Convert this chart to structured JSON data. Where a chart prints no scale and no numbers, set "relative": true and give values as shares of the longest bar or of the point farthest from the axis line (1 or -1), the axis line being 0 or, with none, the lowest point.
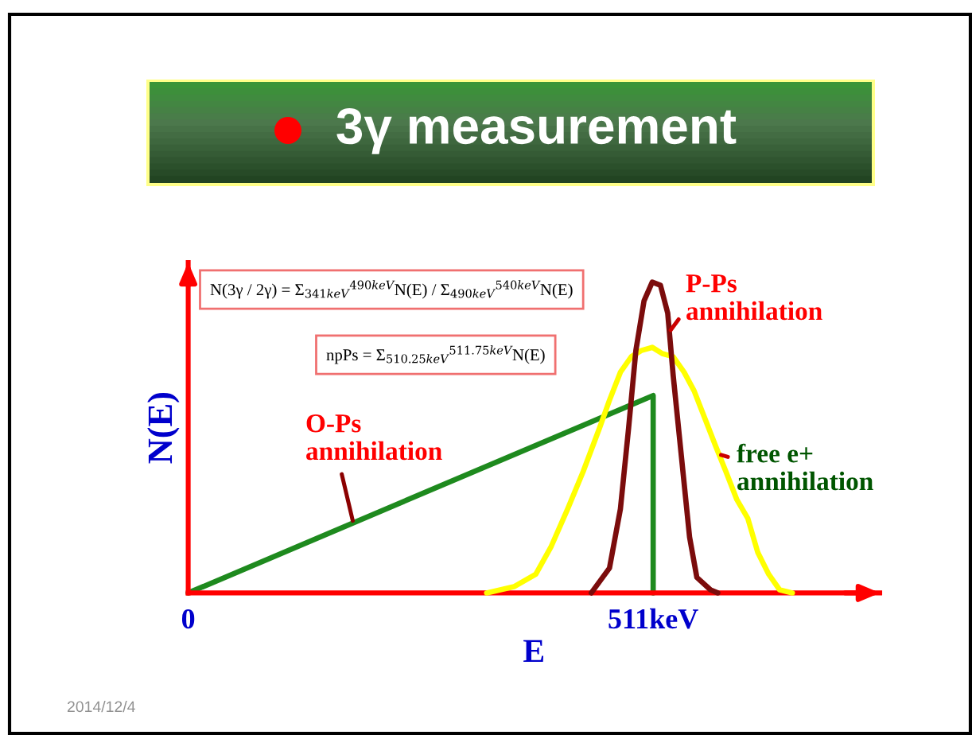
{
  "chart_data": {
    "type": "line",
    "title": "3γ measurement",
    "xlabel": "E",
    "ylabel": "N(E)",
    "relative": true,
    "line_style": "solid",
    "xlim": [
      0,
      760
    ],
    "xticks": [
      0,
      {
        "value": 511,
        "label": "511keV"
      }
    ],
    "series": [
      {
        "name": "O-Ps annihilation",
        "color": "#1e8a1e",
        "x": [
          0,
          511,
          511
        ],
        "values": [
          0,
          0.635,
          0
        ]
      },
      {
        "name": "free e+ annihilation",
        "color": "#ffff00",
        "x": [
          328,
          358,
          382,
          399,
          417,
          434,
          452,
          463,
          475,
          487,
          498,
          510,
          521,
          533,
          545,
          556,
          568,
          580,
          591,
          603,
          615,
          626,
          638,
          650,
          664
        ],
        "values": [
          0,
          0.02,
          0.06,
          0.15,
          0.27,
          0.39,
          0.53,
          0.62,
          0.71,
          0.76,
          0.78,
          0.79,
          0.77,
          0.76,
          0.71,
          0.65,
          0.56,
          0.47,
          0.39,
          0.3,
          0.24,
          0.13,
          0.06,
          0.01,
          0
        ]
      },
      {
        "name": "P-Ps annihilation",
        "color": "#7b0c0c",
        "x": [
          443,
          463,
          475,
          484,
          492,
          501,
          510,
          519,
          527,
          533,
          542,
          551,
          559,
          574,
          582
        ],
        "values": [
          0,
          0.08,
          0.27,
          0.53,
          0.78,
          0.94,
          1,
          0.99,
          0.9,
          0.7,
          0.44,
          0.18,
          0.05,
          0.01,
          0
        ]
      }
    ],
    "annotations": [
      "N(3γ / 2γ) = Σ$_{341keV}$$^{490keV}$N(E) / Σ$_{490keV}$$^{540keV}$N(E)",
      "npPs = Σ$_{510.25keV}$$^{511.75keV}$N(E)",
      "2014/12/4"
    ]
  }
}
